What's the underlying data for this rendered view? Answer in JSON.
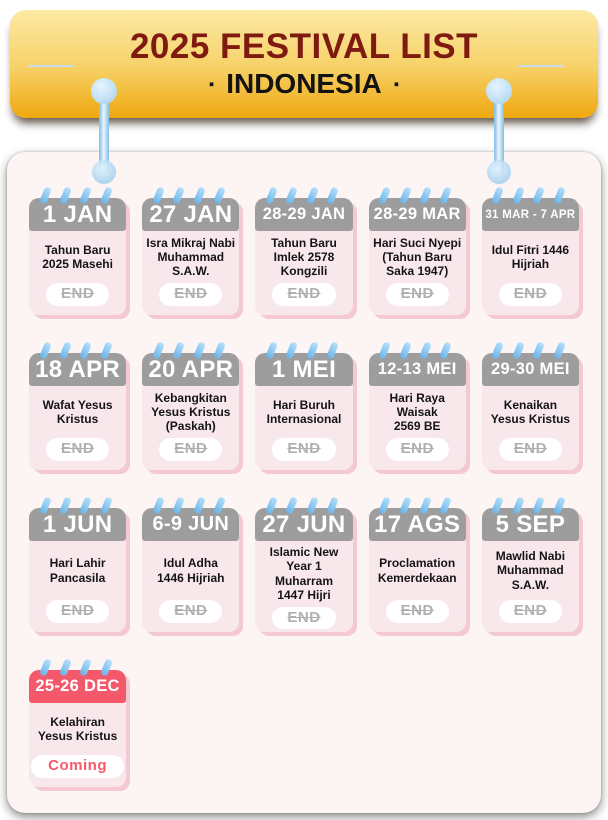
{
  "banner": {
    "title": "2025 FESTIVAL LIST",
    "subtitle": "INDONESIA",
    "bullet": "▪"
  },
  "cards": [
    {
      "date": "1 JAN",
      "name": "Tahun Baru\n2025 Masehi",
      "status": "end",
      "status_label": "END"
    },
    {
      "date": "27 JAN",
      "name": "Isra Mikraj Nabi\nMuhammad\nS.A.W.",
      "status": "end",
      "status_label": "END"
    },
    {
      "date": "28-29 JAN",
      "name": "Tahun Baru\nImlek 2578\nKongzili",
      "status": "end",
      "status_label": "END"
    },
    {
      "date": "28-29 MAR",
      "name": "Hari Suci Nyepi\n(Tahun Baru\nSaka 1947)",
      "status": "end",
      "status_label": "END"
    },
    {
      "date": "31 MAR - 7 APR",
      "name": "Idul Fitri 1446\nHijriah",
      "status": "end",
      "status_label": "END"
    },
    {
      "date": "18 APR",
      "name": "Wafat Yesus\nKristus",
      "status": "end",
      "status_label": "END"
    },
    {
      "date": "20 APR",
      "name": "Kebangkitan\nYesus Kristus\n(Paskah)",
      "status": "end",
      "status_label": "END"
    },
    {
      "date": "1 MEI",
      "name": "Hari Buruh\nInternasional",
      "status": "end",
      "status_label": "END"
    },
    {
      "date": "12-13 MEI",
      "name": "Hari Raya\nWaisak\n2569 BE",
      "status": "end",
      "status_label": "END"
    },
    {
      "date": "29-30 MEI",
      "name": "Kenaikan\nYesus Kristus",
      "status": "end",
      "status_label": "END"
    },
    {
      "date": "1 JUN",
      "name": "Hari Lahir\nPancasila",
      "status": "end",
      "status_label": "END"
    },
    {
      "date": "6-9 JUN",
      "name": "Idul Adha\n1446 Hijriah",
      "status": "end",
      "status_label": "END"
    },
    {
      "date": "27 JUN",
      "name": "Islamic New\nYear 1\nMuharram\n1447 Hijri",
      "status": "end",
      "status_label": "END"
    },
    {
      "date": "17 AGS",
      "name": "Proclamation\nKemerdekaan",
      "status": "end",
      "status_label": "END"
    },
    {
      "date": "5 SEP",
      "name": "Mawlid Nabi\nMuhammad\nS.A.W.",
      "status": "end",
      "status_label": "END"
    },
    {
      "date": "25-26 DEC",
      "name": "Kelahiran\nYesus Kristus",
      "status": "coming",
      "status_label": "Coming"
    }
  ],
  "colors": {
    "banner-top": "#FCE9A4",
    "banner-bottom": "#EFA80F",
    "title-red": "#7F1A10",
    "subtitle-black": "#131313",
    "deco-line": "#C8DEEA",
    "panel-bg": "#FCF5F3",
    "card-body": "#F9E8EB",
    "card-shadow": "#F5C9D2",
    "header-gray": "#9D9D9D",
    "coming-red": "#F4596B",
    "end-gray": "#B0B0B3",
    "pin-blue": "#8FC3E8",
    "loop-blue": "#6FB7EA"
  }
}
